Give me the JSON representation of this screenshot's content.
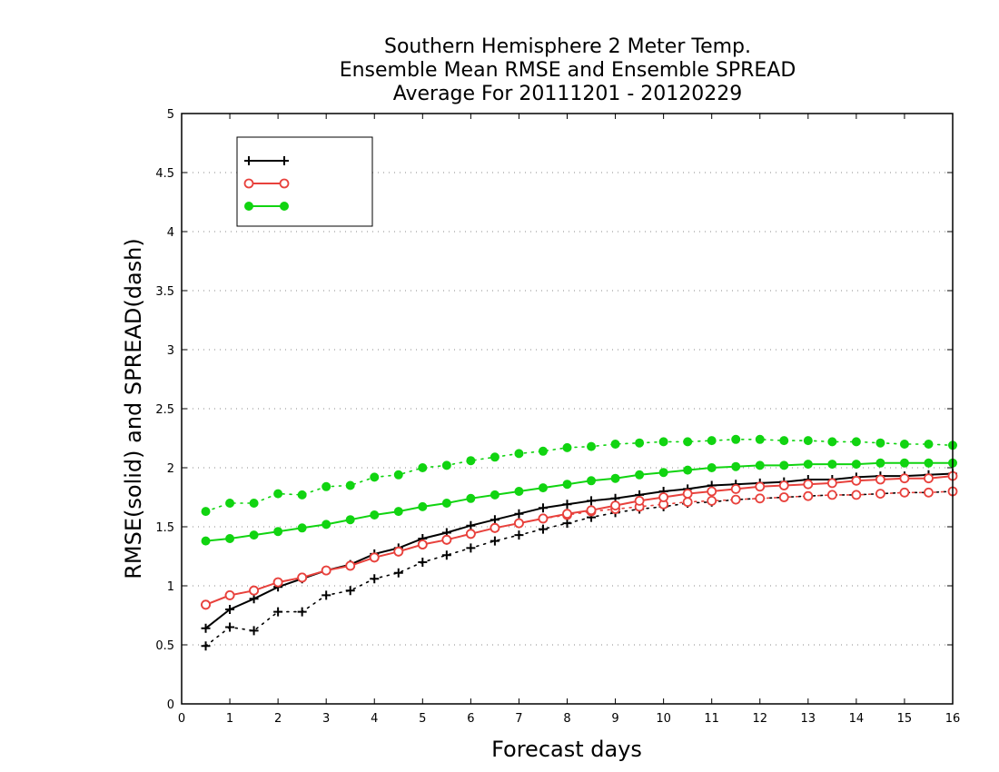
{
  "chart_data": {
    "type": "line",
    "title": [
      "Southern Hemisphere 2 Meter Temp.",
      "Ensemble Mean RMSE and Ensemble SPREAD",
      "Average For 20111201 - 20120229"
    ],
    "xlabel": "Forecast days",
    "ylabel": "RMSE(solid) and SPREAD(dash)",
    "xlim": [
      0,
      16
    ],
    "ylim": [
      0,
      5
    ],
    "xticks": [
      "0",
      "1",
      "2",
      "3",
      "4",
      "5",
      "6",
      "7",
      "8",
      "9",
      "10",
      "11",
      "12",
      "13",
      "14",
      "15",
      "16"
    ],
    "yticks": [
      "0",
      "0.5",
      "1",
      "1.5",
      "2",
      "2.5",
      "3",
      "3.5",
      "4",
      "4.5",
      "5"
    ],
    "grid": "horizontal dotted",
    "legend_position": "top-left",
    "x": [
      0.5,
      1,
      1.5,
      2,
      2.5,
      3,
      3.5,
      4,
      4.5,
      5,
      5.5,
      6,
      6.5,
      7,
      7.5,
      8,
      8.5,
      9,
      9.5,
      10,
      10.5,
      11,
      11.5,
      12,
      12.5,
      13,
      13.5,
      14,
      14.5,
      15,
      15.5,
      16
    ],
    "series": [
      {
        "legend_label": "",
        "color": "#000000",
        "marker": "plus",
        "rmse": [
          0.64,
          0.8,
          0.89,
          0.99,
          1.06,
          1.13,
          1.18,
          1.27,
          1.32,
          1.4,
          1.45,
          1.51,
          1.56,
          1.61,
          1.66,
          1.69,
          1.72,
          1.74,
          1.77,
          1.8,
          1.82,
          1.85,
          1.86,
          1.87,
          1.88,
          1.9,
          1.9,
          1.92,
          1.93,
          1.93,
          1.94,
          1.95
        ],
        "spread": [
          0.49,
          0.65,
          0.62,
          0.78,
          0.78,
          0.92,
          0.96,
          1.06,
          1.11,
          1.2,
          1.26,
          1.32,
          1.38,
          1.43,
          1.48,
          1.53,
          1.58,
          1.62,
          1.65,
          1.67,
          1.7,
          1.71,
          1.73,
          1.74,
          1.75,
          1.76,
          1.77,
          1.77,
          1.78,
          1.79,
          1.79,
          1.8
        ]
      },
      {
        "legend_label": "",
        "color": "#e8413c",
        "marker": "open-circle",
        "rmse": [
          0.84,
          0.92,
          0.96,
          1.03,
          1.07,
          1.13,
          1.17,
          1.24,
          1.29,
          1.35,
          1.39,
          1.44,
          1.49,
          1.53,
          1.57,
          1.61,
          1.64,
          1.68,
          1.72,
          1.75,
          1.78,
          1.8,
          1.82,
          1.84,
          1.85,
          1.86,
          1.87,
          1.89,
          1.9,
          1.91,
          1.91,
          1.93
        ],
        "spread": [
          0.84,
          0.92,
          0.96,
          1.03,
          1.07,
          1.13,
          1.17,
          1.24,
          1.29,
          1.35,
          1.39,
          1.44,
          1.49,
          1.53,
          1.57,
          1.6,
          1.63,
          1.65,
          1.67,
          1.69,
          1.71,
          1.72,
          1.73,
          1.74,
          1.75,
          1.76,
          1.77,
          1.77,
          1.78,
          1.79,
          1.79,
          1.8
        ]
      },
      {
        "legend_label": "",
        "color": "#11d411",
        "marker": "filled-circle",
        "rmse": [
          1.38,
          1.4,
          1.43,
          1.46,
          1.49,
          1.52,
          1.56,
          1.6,
          1.63,
          1.67,
          1.7,
          1.74,
          1.77,
          1.8,
          1.83,
          1.86,
          1.89,
          1.91,
          1.94,
          1.96,
          1.98,
          2.0,
          2.01,
          2.02,
          2.02,
          2.03,
          2.03,
          2.03,
          2.04,
          2.04,
          2.04,
          2.04
        ],
        "spread": [
          1.63,
          1.7,
          1.7,
          1.78,
          1.77,
          1.84,
          1.85,
          1.92,
          1.94,
          2.0,
          2.02,
          2.06,
          2.09,
          2.12,
          2.14,
          2.17,
          2.18,
          2.2,
          2.21,
          2.22,
          2.22,
          2.23,
          2.24,
          2.24,
          2.23,
          2.23,
          2.22,
          2.22,
          2.21,
          2.2,
          2.2,
          2.19
        ]
      }
    ]
  }
}
